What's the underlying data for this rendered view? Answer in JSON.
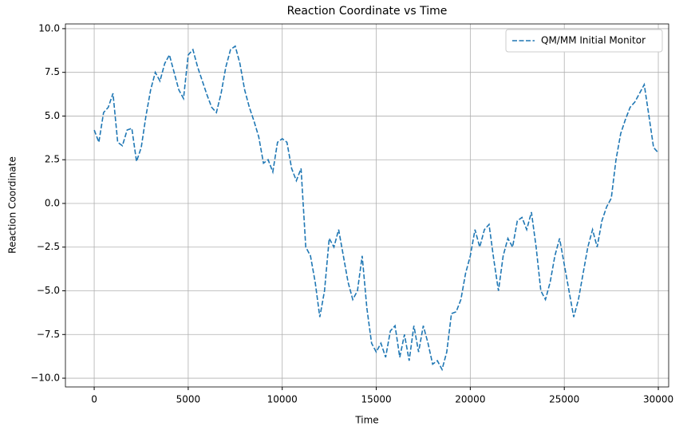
{
  "chart_data": {
    "type": "line",
    "title": "Reaction Coordinate vs Time",
    "xlabel": "Time",
    "ylabel": "Reaction Coordinate",
    "x": [
      0,
      250,
      500,
      750,
      1000,
      1250,
      1500,
      1750,
      2000,
      2250,
      2500,
      2750,
      3000,
      3250,
      3500,
      3750,
      4000,
      4250,
      4500,
      4750,
      5000,
      5250,
      5500,
      5750,
      6000,
      6250,
      6500,
      6750,
      7000,
      7250,
      7500,
      7750,
      8000,
      8250,
      8500,
      8750,
      9000,
      9250,
      9500,
      9750,
      10000,
      10250,
      10500,
      10750,
      11000,
      11250,
      11500,
      11750,
      12000,
      12250,
      12500,
      12750,
      13000,
      13250,
      13500,
      13750,
      14000,
      14250,
      14500,
      14750,
      15000,
      15250,
      15500,
      15750,
      16000,
      16250,
      16500,
      16750,
      17000,
      17250,
      17500,
      17750,
      18000,
      18250,
      18500,
      18750,
      19000,
      19250,
      19500,
      19750,
      20000,
      20250,
      20500,
      20750,
      21000,
      21250,
      21500,
      21750,
      22000,
      22250,
      22500,
      22750,
      23000,
      23250,
      23500,
      23750,
      24000,
      24250,
      24500,
      24750,
      25000,
      25250,
      25500,
      25750,
      26000,
      26250,
      26500,
      26750,
      27000,
      27250,
      27500,
      27750,
      28000,
      28250,
      28500,
      28750,
      29000,
      29250,
      29500,
      29750,
      30000
    ],
    "series": [
      {
        "name": "QM/MM Initial Monitor",
        "color": "#1f77b4",
        "values": [
          4.2,
          3.5,
          5.2,
          5.5,
          6.3,
          3.5,
          3.3,
          4.2,
          4.3,
          2.4,
          3.2,
          5.0,
          6.5,
          7.5,
          7.0,
          8.0,
          8.5,
          7.5,
          6.5,
          6.0,
          8.5,
          8.8,
          7.8,
          7.0,
          6.2,
          5.5,
          5.2,
          6.3,
          7.8,
          8.8,
          9.0,
          8.0,
          6.5,
          5.5,
          4.7,
          3.8,
          2.3,
          2.5,
          1.8,
          3.5,
          3.7,
          3.5,
          2.0,
          1.3,
          2.0,
          -2.5,
          -3.0,
          -4.5,
          -6.5,
          -5.0,
          -2.0,
          -2.5,
          -1.5,
          -3.0,
          -4.5,
          -5.5,
          -5.0,
          -3.0,
          -6.0,
          -8.0,
          -8.5,
          -8.0,
          -8.8,
          -7.3,
          -7.0,
          -8.8,
          -7.5,
          -9.0,
          -7.0,
          -8.5,
          -7.0,
          -8.0,
          -9.2,
          -9.0,
          -9.5,
          -8.5,
          -6.3,
          -6.2,
          -5.5,
          -4.0,
          -3.0,
          -1.5,
          -2.5,
          -1.5,
          -1.2,
          -3.2,
          -5.0,
          -3.0,
          -2.0,
          -2.5,
          -1.0,
          -0.8,
          -1.5,
          -0.5,
          -2.5,
          -5.0,
          -5.5,
          -4.5,
          -3.0,
          -2.0,
          -3.5,
          -5.0,
          -6.5,
          -5.5,
          -4.0,
          -2.5,
          -1.5,
          -2.5,
          -1.0,
          -0.2,
          0.3,
          2.5,
          4.0,
          4.8,
          5.5,
          5.8,
          6.3,
          6.8,
          5.0,
          3.2,
          2.9
        ]
      }
    ],
    "xlim": [
      -1530,
      30550
    ],
    "ylim": [
      -10.5,
      10.27
    ],
    "xticks": [
      0,
      5000,
      10000,
      15000,
      20000,
      25000,
      30000
    ],
    "yticks": [
      {
        "value": -10,
        "label": "−10.0"
      },
      {
        "value": -7.5,
        "label": "−7.5"
      },
      {
        "value": -5,
        "label": "−5.0"
      },
      {
        "value": -2.5,
        "label": "−2.5"
      },
      {
        "value": 0,
        "label": "0.0"
      },
      {
        "value": 2.5,
        "label": "2.5"
      },
      {
        "value": 5,
        "label": "5.0"
      },
      {
        "value": 7.5,
        "label": "7.5"
      },
      {
        "value": 10,
        "label": "10.0"
      }
    ],
    "grid": true,
    "legend": "upper right",
    "dashed": true
  }
}
